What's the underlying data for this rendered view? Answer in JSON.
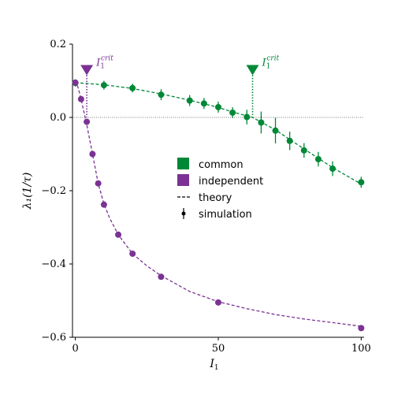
{
  "chart_data": {
    "type": "line",
    "xlabel": "I",
    "xlabel_sub": "1",
    "ylabel": "λ₁(1/τ)",
    "xlim": [
      -1,
      101
    ],
    "ylim": [
      -0.6,
      0.2
    ],
    "xticks": [
      0,
      50,
      100
    ],
    "xtick_labels": [
      "0",
      "50",
      "100"
    ],
    "yticks": [
      0.2,
      0.0,
      -0.2,
      -0.4,
      -0.6
    ],
    "ytick_labels": [
      "0.2",
      "0.0",
      "−0.2",
      "−0.4",
      "−0.6"
    ],
    "zero_line": true,
    "legend_position": "center",
    "legend": [
      {
        "label": "common",
        "marker": "square",
        "color": "#008837"
      },
      {
        "label": "independent",
        "marker": "square",
        "color": "#7b3294"
      },
      {
        "label": "theory",
        "marker": "dashed-line",
        "color": "#000000"
      },
      {
        "label": "simulation",
        "marker": "errorbar-point",
        "color": "#000000"
      }
    ],
    "series": [
      {
        "name": "common",
        "color": "#008837",
        "simulation": [
          {
            "x": 0,
            "y": 0.094,
            "err": 0.01
          },
          {
            "x": 10,
            "y": 0.088,
            "err": 0.012
          },
          {
            "x": 20,
            "y": 0.08,
            "err": 0.012
          },
          {
            "x": 30,
            "y": 0.062,
            "err": 0.015
          },
          {
            "x": 40,
            "y": 0.046,
            "err": 0.015
          },
          {
            "x": 45,
            "y": 0.038,
            "err": 0.015
          },
          {
            "x": 50,
            "y": 0.028,
            "err": 0.015
          },
          {
            "x": 55,
            "y": 0.013,
            "err": 0.015
          },
          {
            "x": 60,
            "y": 0.001,
            "err": 0.02
          },
          {
            "x": 65,
            "y": -0.014,
            "err": 0.03
          },
          {
            "x": 70,
            "y": -0.036,
            "err": 0.035
          },
          {
            "x": 75,
            "y": -0.064,
            "err": 0.025
          },
          {
            "x": 80,
            "y": -0.09,
            "err": 0.02
          },
          {
            "x": 85,
            "y": -0.114,
            "err": 0.02
          },
          {
            "x": 90,
            "y": -0.14,
            "err": 0.02
          },
          {
            "x": 100,
            "y": -0.177,
            "err": 0.015
          }
        ],
        "theory": [
          {
            "x": 0,
            "y": 0.095
          },
          {
            "x": 10,
            "y": 0.089
          },
          {
            "x": 20,
            "y": 0.079
          },
          {
            "x": 30,
            "y": 0.064
          },
          {
            "x": 40,
            "y": 0.047
          },
          {
            "x": 50,
            "y": 0.027
          },
          {
            "x": 55,
            "y": 0.015
          },
          {
            "x": 62,
            "y": 0.0
          },
          {
            "x": 70,
            "y": -0.034
          },
          {
            "x": 80,
            "y": -0.086
          },
          {
            "x": 90,
            "y": -0.137
          },
          {
            "x": 100,
            "y": -0.182
          }
        ],
        "critical": {
          "x": 62,
          "y_marker": 0.13,
          "label": "I",
          "label_sub": "1",
          "label_sup": "crit"
        }
      },
      {
        "name": "independent",
        "color": "#7b3294",
        "simulation": [
          {
            "x": 0,
            "y": 0.095,
            "err": 0.008
          },
          {
            "x": 2,
            "y": 0.05,
            "err": 0.008
          },
          {
            "x": 4,
            "y": -0.012,
            "err": 0.008
          },
          {
            "x": 6,
            "y": -0.1,
            "err": 0.008
          },
          {
            "x": 8,
            "y": -0.18,
            "err": 0.008
          },
          {
            "x": 10,
            "y": -0.238,
            "err": 0.008
          },
          {
            "x": 15,
            "y": -0.32,
            "err": 0.008
          },
          {
            "x": 20,
            "y": -0.372,
            "err": 0.008
          },
          {
            "x": 30,
            "y": -0.435,
            "err": 0.006
          },
          {
            "x": 50,
            "y": -0.505,
            "err": 0.006
          },
          {
            "x": 100,
            "y": -0.575,
            "err": 0.006
          }
        ],
        "theory": [
          {
            "x": 0,
            "y": 0.1
          },
          {
            "x": 1,
            "y": 0.08
          },
          {
            "x": 2,
            "y": 0.05
          },
          {
            "x": 3,
            "y": 0.015
          },
          {
            "x": 4,
            "y": -0.02
          },
          {
            "x": 5,
            "y": -0.06
          },
          {
            "x": 6,
            "y": -0.1
          },
          {
            "x": 7,
            "y": -0.14
          },
          {
            "x": 8,
            "y": -0.18
          },
          {
            "x": 10,
            "y": -0.236
          },
          {
            "x": 12,
            "y": -0.275
          },
          {
            "x": 15,
            "y": -0.32
          },
          {
            "x": 20,
            "y": -0.372
          },
          {
            "x": 25,
            "y": -0.405
          },
          {
            "x": 30,
            "y": -0.432
          },
          {
            "x": 40,
            "y": -0.475
          },
          {
            "x": 50,
            "y": -0.503
          },
          {
            "x": 60,
            "y": -0.522
          },
          {
            "x": 70,
            "y": -0.538
          },
          {
            "x": 80,
            "y": -0.55
          },
          {
            "x": 90,
            "y": -0.56
          },
          {
            "x": 100,
            "y": -0.57
          }
        ],
        "critical": {
          "x": 4,
          "y_marker": 0.13,
          "label": "I",
          "label_sub": "1",
          "label_sup": "crit"
        }
      }
    ]
  }
}
